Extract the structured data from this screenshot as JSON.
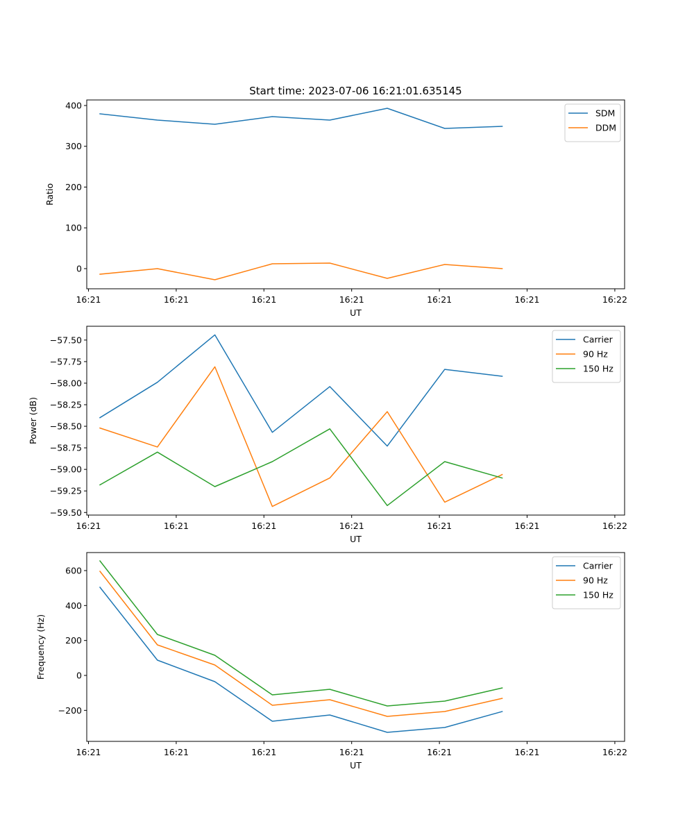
{
  "figure": {
    "suptitle": "Start time: 2023-07-06 16:21:01.635145"
  },
  "chart_data": [
    {
      "type": "line",
      "title": "Start time: 2023-07-06 16:21:01.635145",
      "xlabel": "UT",
      "ylabel": "Ratio",
      "x_index": [
        0,
        1,
        2,
        3,
        4,
        5,
        6,
        7
      ],
      "xlim": [
        -0.23,
        9.13
      ],
      "x_ticks": [
        -0.2,
        1.327,
        2.853,
        4.38,
        5.907,
        7.433,
        8.96
      ],
      "x_tick_labels": [
        "16:21",
        "16:21",
        "16:21",
        "16:21",
        "16:21",
        "16:21",
        "16:22"
      ],
      "ylim": [
        -49.4,
        413.6
      ],
      "y_ticks": [
        0,
        100,
        200,
        300,
        400
      ],
      "y_tick_labels": [
        "0",
        "100",
        "200",
        "300",
        "400"
      ],
      "grid": false,
      "legend": "top-right",
      "series": [
        {
          "name": "SDM",
          "color": "#1f77b4",
          "values": [
            379.6,
            364.3,
            354.0,
            372.8,
            364.3,
            393.2,
            343.8,
            348.9
          ]
        },
        {
          "name": "DDM",
          "color": "#ff7f0e",
          "values": [
            -13.6,
            0.0,
            -27.2,
            11.9,
            13.6,
            -23.8,
            10.2,
            0.0
          ]
        }
      ]
    },
    {
      "type": "line",
      "title": "",
      "xlabel": "UT",
      "ylabel": "Power (dB)",
      "x_index": [
        0,
        1,
        2,
        3,
        4,
        5,
        6,
        7
      ],
      "xlim": [
        -0.23,
        9.13
      ],
      "x_ticks": [
        -0.2,
        1.327,
        2.853,
        4.38,
        5.907,
        7.433,
        8.96
      ],
      "x_tick_labels": [
        "16:21",
        "16:21",
        "16:21",
        "16:21",
        "16:21",
        "16:21",
        "16:22"
      ],
      "ylim": [
        -59.53,
        -57.34
      ],
      "y_ticks": [
        -59.5,
        -59.25,
        -59.0,
        -58.75,
        -58.5,
        -58.25,
        -58.0,
        -57.75,
        -57.5
      ],
      "y_tick_labels": [
        "−59.50",
        "−59.25",
        "−59.00",
        "−58.75",
        "−58.50",
        "−58.25",
        "−58.00",
        "−57.75",
        "−57.50"
      ],
      "grid": false,
      "legend": "top-right",
      "series": [
        {
          "name": "Carrier",
          "color": "#1f77b4",
          "values": [
            -58.4,
            -57.99,
            -57.44,
            -58.57,
            -58.04,
            -58.73,
            -57.84,
            -57.92
          ]
        },
        {
          "name": "90 Hz",
          "color": "#ff7f0e",
          "values": [
            -58.52,
            -58.74,
            -57.81,
            -59.43,
            -59.1,
            -58.33,
            -59.38,
            -59.06
          ]
        },
        {
          "name": "150 Hz",
          "color": "#2ca02c",
          "values": [
            -59.18,
            -58.8,
            -59.2,
            -58.91,
            -58.53,
            -59.42,
            -58.91,
            -59.1
          ]
        }
      ]
    },
    {
      "type": "line",
      "title": "",
      "xlabel": "UT",
      "ylabel": "Frequency (Hz)",
      "x_index": [
        0,
        1,
        2,
        3,
        4,
        5,
        6,
        7
      ],
      "xlim": [
        -0.23,
        9.13
      ],
      "x_ticks": [
        -0.2,
        1.327,
        2.853,
        4.38,
        5.907,
        7.433,
        8.96
      ],
      "x_tick_labels": [
        "16:21",
        "16:21",
        "16:21",
        "16:21",
        "16:21",
        "16:21",
        "16:22"
      ],
      "ylim": [
        -377.4,
        703.2
      ],
      "y_ticks": [
        -200,
        0,
        200,
        400,
        600
      ],
      "y_tick_labels": [
        "−200",
        "0",
        "200",
        "400",
        "600"
      ],
      "grid": false,
      "legend": "top-right",
      "series": [
        {
          "name": "Carrier",
          "color": "#1f77b4",
          "values": [
            504.6,
            87.4,
            -35.8,
            -262.2,
            -226.5,
            -325.8,
            -298.0,
            -206.6
          ]
        },
        {
          "name": "90 Hz",
          "color": "#ff7f0e",
          "values": [
            596.0,
            174.8,
            59.6,
            -170.8,
            -139.1,
            -234.4,
            -206.6,
            -131.1
          ]
        },
        {
          "name": "150 Hz",
          "color": "#2ca02c",
          "values": [
            655.6,
            234.4,
            115.2,
            -111.2,
            -79.5,
            -174.8,
            -147.0,
            -71.5
          ]
        }
      ]
    }
  ]
}
